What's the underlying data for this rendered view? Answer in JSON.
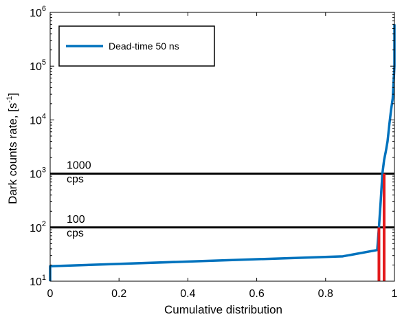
{
  "chart_data": {
    "type": "line",
    "title": "",
    "xlabel": "Cumulative distribution",
    "ylabel_main": "Dark counts rate, [s",
    "ylabel_sup": "-1",
    "ylabel_end": "]",
    "xlim": [
      0,
      1
    ],
    "ylim": [
      10,
      1000000
    ],
    "yscale": "log",
    "x_ticks": [
      "0",
      "0.2",
      "0.4",
      "0.6",
      "0.8",
      "1"
    ],
    "x_tick_values": [
      0,
      0.2,
      0.4,
      0.6,
      0.8,
      1
    ],
    "y_tick_base": "10",
    "y_tick_exponents": [
      "1",
      "2",
      "3",
      "4",
      "5",
      "6"
    ],
    "legend": {
      "placement": "top-left",
      "entries": [
        "Dead-time 50 ns"
      ]
    },
    "series": [
      {
        "name": "Dead-time 50 ns",
        "color": "#0072BD",
        "x": [
          0,
          0,
          0.85,
          0.95,
          0.955,
          0.96,
          0.965,
          0.97,
          0.975,
          0.98,
          0.985,
          0.99,
          0.995,
          1,
          1
        ],
        "y": [
          10,
          19,
          29,
          38,
          100,
          300,
          1000,
          1800,
          2600,
          4000,
          8000,
          15000,
          25000,
          100000,
          600000
        ]
      }
    ],
    "reference_lines": [
      {
        "y": 1000,
        "label_line1": "1000",
        "label_line2": "cps",
        "color": "#000000"
      },
      {
        "y": 100,
        "label_line1": "100",
        "label_line2": "cps",
        "color": "#000000"
      }
    ],
    "vertical_markers": [
      {
        "x": 0.955,
        "y_top": 100,
        "color": "#E31A1C"
      },
      {
        "x": 0.97,
        "y_top": 1000,
        "color": "#E31A1C"
      }
    ]
  }
}
